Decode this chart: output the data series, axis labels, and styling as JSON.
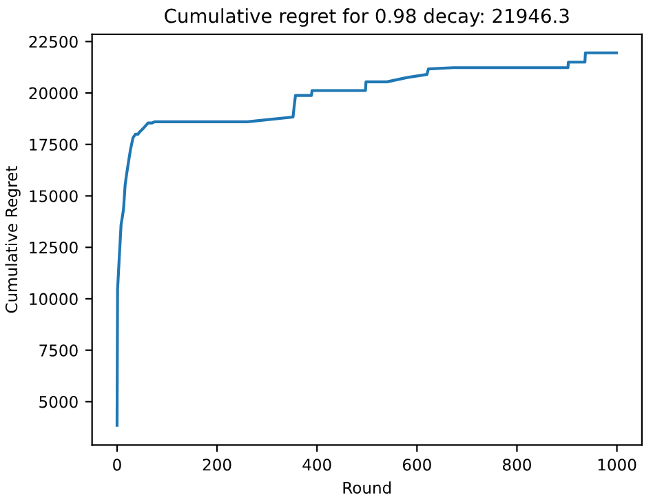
{
  "chart_data": {
    "type": "line",
    "title": "Cumulative regret for 0.98 decay: 21946.3",
    "xlabel": "Round",
    "ylabel": "Cumulative Regret",
    "series": [
      {
        "color": "#1f77b4",
        "x": [
          0,
          1,
          2,
          4,
          8,
          11,
          13,
          16,
          19,
          24,
          27,
          32,
          37,
          42,
          45,
          50,
          55,
          62,
          70,
          75,
          85,
          95,
          100,
          261,
          300,
          352,
          355,
          357,
          389,
          390,
          497,
          498,
          540,
          580,
          620,
          623,
          673,
          902,
          903,
          936,
          937,
          999
        ],
        "values": [
          3850,
          10480,
          10900,
          11810,
          13600,
          14040,
          14370,
          15490,
          16040,
          16820,
          17270,
          17830,
          18000,
          18000,
          18100,
          18220,
          18350,
          18540,
          18540,
          18600,
          18600,
          18600,
          18600,
          18600,
          18700,
          18830,
          19500,
          19880,
          19880,
          20120,
          20120,
          20540,
          20540,
          20750,
          20900,
          21170,
          21230,
          21230,
          21500,
          21500,
          21950,
          21950
        ]
      }
    ],
    "xlim": [
      -50,
      1050
    ],
    "ylim": [
      2893,
      22853
    ],
    "xticks": [
      0,
      200,
      400,
      600,
      800,
      1000
    ],
    "yticks": [
      5000,
      7500,
      10000,
      12500,
      15000,
      17500,
      20000,
      22500
    ],
    "grid": false,
    "legend": false
  }
}
